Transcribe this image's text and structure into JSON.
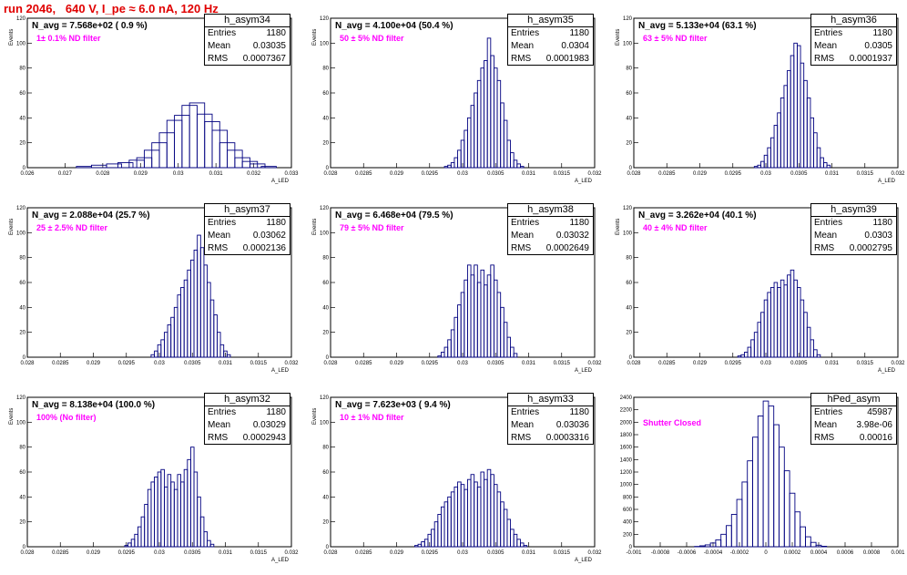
{
  "run_title": "run 2046,   640 V, I_pe ≈ 6.0 nA, 120 Hz",
  "stat_labels": {
    "entries": "Entries",
    "mean": "Mean",
    "rms": "RMS"
  },
  "panels": [
    {
      "hname": "h_asym34",
      "navg": "N_avg = 7.568e+02 ( 0.9 %)",
      "filter": "1± 0.1% ND filter",
      "entries": "1180",
      "mean": "0.03035",
      "rms": "0.0007367",
      "ylabel": "Events",
      "xlabel": "A_LED"
    },
    {
      "hname": "h_asym35",
      "navg": "N_avg = 4.100e+04 (50.4 %)",
      "filter": "50 ± 5% ND filter",
      "entries": "1180",
      "mean": "0.0304",
      "rms": "0.0001983",
      "ylabel": "Events",
      "xlabel": "A_LED"
    },
    {
      "hname": "h_asym36",
      "navg": "N_avg = 5.133e+04 (63.1 %)",
      "filter": "63 ± 5% ND filter",
      "entries": "1180",
      "mean": "0.0305",
      "rms": "0.0001937",
      "ylabel": "Events",
      "xlabel": "A_LED"
    },
    {
      "hname": "h_asym37",
      "navg": "N_avg = 2.088e+04 (25.7 %)",
      "filter": "25 ± 2.5% ND filter",
      "entries": "1180",
      "mean": "0.03062",
      "rms": "0.0002136",
      "ylabel": "Events",
      "xlabel": "A_LED"
    },
    {
      "hname": "h_asym38",
      "navg": "N_avg = 6.468e+04 (79.5 %)",
      "filter": "79 ± 5% ND filter",
      "entries": "1180",
      "mean": "0.03032",
      "rms": "0.0002649",
      "ylabel": "Events",
      "xlabel": "A_LED"
    },
    {
      "hname": "h_asym39",
      "navg": "N_avg = 3.262e+04 (40.1 %)",
      "filter": "40 ± 4% ND filter",
      "entries": "1180",
      "mean": "0.0303",
      "rms": "0.0002795",
      "ylabel": "Events",
      "xlabel": "A_LED"
    },
    {
      "hname": "h_asym32",
      "navg": "N_avg = 8.138e+04 (100.0 %)",
      "filter": "100% (No filter)",
      "entries": "1180",
      "mean": "0.03029",
      "rms": "0.0002943",
      "ylabel": "Events",
      "xlabel": "A_LED"
    },
    {
      "hname": "h_asym33",
      "navg": "N_avg = 7.623e+03 ( 9.4 %)",
      "filter": "10 ± 1% ND filter",
      "entries": "1180",
      "mean": "0.03036",
      "rms": "0.0003316",
      "ylabel": "Events",
      "xlabel": "A_LED"
    },
    {
      "hname": "hPed_asym",
      "navg": "",
      "filter": "Shutter Closed",
      "entries": "45987",
      "mean": "3.98e-06",
      "rms": "0.00016",
      "ylabel": "",
      "xlabel": ""
    }
  ],
  "chart_data": [
    {
      "type": "bar",
      "series_color": "#000080",
      "xlim": [
        0.026,
        0.033
      ],
      "ylim": [
        0,
        120
      ],
      "xticks": [
        "0.026",
        "0.027",
        "0.028",
        "0.029",
        "0.03",
        "0.031",
        "0.032",
        "0.033"
      ],
      "yticks": [
        "0",
        "20",
        "40",
        "60",
        "80",
        "100",
        "120"
      ],
      "x": [
        0.0275,
        0.0279,
        0.0283,
        0.0286,
        0.0289,
        0.0291,
        0.0293,
        0.0295,
        0.0297,
        0.0299,
        0.0301,
        0.0303,
        0.0305,
        0.0307,
        0.0309,
        0.0311,
        0.0313,
        0.0315,
        0.0317,
        0.0319,
        0.0321,
        0.0324
      ],
      "values": [
        1,
        2,
        3,
        4,
        6,
        8,
        14,
        20,
        28,
        38,
        42,
        50,
        52,
        43,
        37,
        30,
        20,
        14,
        8,
        5,
        3,
        1
      ]
    },
    {
      "type": "bar",
      "series_color": "#000080",
      "xlim": [
        0.028,
        0.032
      ],
      "ylim": [
        0,
        120
      ],
      "xticks": [
        "0.028",
        "0.0285",
        "0.029",
        "0.0295",
        "0.03",
        "0.0305",
        "0.031",
        "0.0315",
        "0.032"
      ],
      "yticks": [
        "0",
        "20",
        "40",
        "60",
        "80",
        "100",
        "120"
      ],
      "x": [
        0.02975,
        0.0298,
        0.02985,
        0.0299,
        0.02995,
        0.03,
        0.03005,
        0.0301,
        0.03015,
        0.0302,
        0.03025,
        0.0303,
        0.03035,
        0.0304,
        0.03045,
        0.0305,
        0.03055,
        0.0306,
        0.03065,
        0.0307,
        0.03075,
        0.0308,
        0.03085,
        0.0309
      ],
      "values": [
        1,
        2,
        4,
        8,
        14,
        22,
        30,
        40,
        50,
        60,
        70,
        80,
        86,
        104,
        90,
        80,
        70,
        52,
        38,
        22,
        12,
        6,
        3,
        1
      ]
    },
    {
      "type": "bar",
      "series_color": "#000080",
      "xlim": [
        0.028,
        0.032
      ],
      "ylim": [
        0,
        120
      ],
      "xticks": [
        "0.028",
        "0.0285",
        "0.029",
        "0.0295",
        "0.03",
        "0.0305",
        "0.031",
        "0.0315",
        "0.032"
      ],
      "yticks": [
        "0",
        "20",
        "40",
        "60",
        "80",
        "100",
        "120"
      ],
      "x": [
        0.02985,
        0.0299,
        0.02995,
        0.03,
        0.03005,
        0.0301,
        0.03015,
        0.0302,
        0.03025,
        0.0303,
        0.03035,
        0.0304,
        0.03045,
        0.0305,
        0.03055,
        0.0306,
        0.03065,
        0.0307,
        0.03075,
        0.0308,
        0.03085,
        0.0309,
        0.03095
      ],
      "values": [
        1,
        2,
        5,
        10,
        16,
        24,
        34,
        44,
        56,
        66,
        78,
        90,
        100,
        98,
        84,
        70,
        56,
        40,
        28,
        16,
        8,
        4,
        2
      ]
    },
    {
      "type": "bar",
      "series_color": "#000080",
      "xlim": [
        0.028,
        0.032
      ],
      "ylim": [
        0,
        120
      ],
      "xticks": [
        "0.028",
        "0.0285",
        "0.029",
        "0.0295",
        "0.03",
        "0.0305",
        "0.031",
        "0.0315",
        "0.032"
      ],
      "yticks": [
        "0",
        "20",
        "40",
        "60",
        "80",
        "100",
        "120"
      ],
      "x": [
        0.0299,
        0.02995,
        0.03,
        0.03005,
        0.0301,
        0.03015,
        0.0302,
        0.03025,
        0.0303,
        0.03035,
        0.0304,
        0.03045,
        0.0305,
        0.03055,
        0.0306,
        0.03065,
        0.0307,
        0.03075,
        0.0308,
        0.03085,
        0.0309,
        0.03095,
        0.031,
        0.03105
      ],
      "values": [
        2,
        5,
        10,
        14,
        20,
        26,
        32,
        40,
        50,
        56,
        62,
        70,
        78,
        86,
        98,
        88,
        74,
        60,
        46,
        34,
        20,
        10,
        5,
        2
      ]
    },
    {
      "type": "bar",
      "series_color": "#000080",
      "xlim": [
        0.028,
        0.032
      ],
      "ylim": [
        0,
        120
      ],
      "xticks": [
        "0.028",
        "0.0285",
        "0.029",
        "0.0295",
        "0.03",
        "0.0305",
        "0.031",
        "0.0315",
        "0.032"
      ],
      "yticks": [
        "0",
        "20",
        "40",
        "60",
        "80",
        "100",
        "120"
      ],
      "x": [
        0.02965,
        0.0297,
        0.02975,
        0.0298,
        0.02985,
        0.0299,
        0.02995,
        0.03,
        0.03005,
        0.0301,
        0.03015,
        0.0302,
        0.03025,
        0.0303,
        0.03035,
        0.0304,
        0.03045,
        0.0305,
        0.03055,
        0.0306,
        0.03065,
        0.0307,
        0.03075,
        0.0308
      ],
      "values": [
        1,
        4,
        8,
        14,
        22,
        32,
        42,
        52,
        62,
        74,
        66,
        74,
        60,
        70,
        58,
        66,
        74,
        62,
        52,
        40,
        28,
        16,
        8,
        3
      ]
    },
    {
      "type": "bar",
      "series_color": "#000080",
      "xlim": [
        0.028,
        0.032
      ],
      "ylim": [
        0,
        120
      ],
      "xticks": [
        "0.028",
        "0.0285",
        "0.029",
        "0.0295",
        "0.03",
        "0.0305",
        "0.031",
        "0.0315",
        "0.032"
      ],
      "yticks": [
        "0",
        "20",
        "40",
        "60",
        "80",
        "100",
        "120"
      ],
      "x": [
        0.0296,
        0.02965,
        0.0297,
        0.02975,
        0.0298,
        0.02985,
        0.0299,
        0.02995,
        0.03,
        0.03005,
        0.0301,
        0.03015,
        0.0302,
        0.03025,
        0.0303,
        0.03035,
        0.0304,
        0.03045,
        0.0305,
        0.03055,
        0.0306,
        0.03065,
        0.0307,
        0.03075,
        0.0308
      ],
      "values": [
        1,
        2,
        4,
        8,
        14,
        20,
        28,
        36,
        46,
        52,
        56,
        60,
        56,
        62,
        58,
        66,
        70,
        62,
        56,
        46,
        36,
        24,
        14,
        6,
        2
      ]
    },
    {
      "type": "bar",
      "series_color": "#000080",
      "xlim": [
        0.028,
        0.032
      ],
      "ylim": [
        0,
        120
      ],
      "xticks": [
        "0.028",
        "0.0285",
        "0.029",
        "0.0295",
        "0.03",
        "0.0305",
        "0.031",
        "0.0315",
        "0.032"
      ],
      "yticks": [
        "0",
        "20",
        "40",
        "60",
        "80",
        "100",
        "120"
      ],
      "x": [
        0.0295,
        0.02955,
        0.0296,
        0.02965,
        0.0297,
        0.02975,
        0.0298,
        0.02985,
        0.0299,
        0.02995,
        0.03,
        0.03005,
        0.0301,
        0.03015,
        0.0302,
        0.03025,
        0.0303,
        0.03035,
        0.0304,
        0.03045,
        0.0305,
        0.03055,
        0.0306,
        0.03065,
        0.0307,
        0.03075,
        0.0308
      ],
      "values": [
        1,
        3,
        6,
        10,
        16,
        24,
        34,
        46,
        52,
        56,
        60,
        62,
        48,
        58,
        52,
        46,
        58,
        52,
        62,
        70,
        80,
        60,
        40,
        24,
        12,
        5,
        2
      ]
    },
    {
      "type": "bar",
      "series_color": "#000080",
      "xlim": [
        0.028,
        0.032
      ],
      "ylim": [
        0,
        120
      ],
      "xticks": [
        "0.028",
        "0.0285",
        "0.029",
        "0.0295",
        "0.03",
        "0.0305",
        "0.031",
        "0.0315",
        "0.032"
      ],
      "yticks": [
        "0",
        "20",
        "40",
        "60",
        "80",
        "100",
        "120"
      ],
      "x": [
        0.0293,
        0.02935,
        0.0294,
        0.02945,
        0.0295,
        0.02955,
        0.0296,
        0.02965,
        0.0297,
        0.02975,
        0.0298,
        0.02985,
        0.0299,
        0.02995,
        0.03,
        0.03005,
        0.0301,
        0.03015,
        0.0302,
        0.03025,
        0.0303,
        0.03035,
        0.0304,
        0.03045,
        0.0305,
        0.03055,
        0.0306,
        0.03065,
        0.0307,
        0.03075,
        0.0308,
        0.03085,
        0.0309,
        0.03095
      ],
      "values": [
        1,
        2,
        4,
        6,
        10,
        14,
        20,
        26,
        32,
        36,
        40,
        44,
        48,
        52,
        50,
        46,
        54,
        58,
        52,
        48,
        60,
        54,
        62,
        58,
        50,
        44,
        36,
        30,
        22,
        14,
        10,
        6,
        3,
        1
      ]
    },
    {
      "type": "bar",
      "series_color": "#000080",
      "xlim": [
        -0.001,
        0.001
      ],
      "ylim": [
        0,
        2400
      ],
      "xticks": [
        "-0.001",
        "-0.0008",
        "-0.0006",
        "-0.0004",
        "-0.0002",
        "0",
        "0.0002",
        "0.0004",
        "0.0006",
        "0.0008",
        "0.001"
      ],
      "yticks": [
        "0",
        "200",
        "400",
        "600",
        "800",
        "1000",
        "1200",
        "1400",
        "1600",
        "1800",
        "2000",
        "2200",
        "2400"
      ],
      "x": [
        -0.00052,
        -0.00048,
        -0.00044,
        -0.0004,
        -0.00036,
        -0.00032,
        -0.00028,
        -0.00024,
        -0.0002,
        -0.00016,
        -0.00012,
        -8e-05,
        -4e-05,
        0,
        4e-05,
        8e-05,
        0.00012,
        0.00016,
        0.0002,
        0.00024,
        0.00028,
        0.00032,
        0.00036,
        0.0004,
        0.00044
      ],
      "values": [
        5,
        15,
        30,
        60,
        110,
        200,
        340,
        520,
        760,
        1040,
        1380,
        1760,
        2100,
        2340,
        2260,
        1960,
        1600,
        1220,
        860,
        560,
        320,
        160,
        70,
        25,
        8
      ]
    }
  ]
}
